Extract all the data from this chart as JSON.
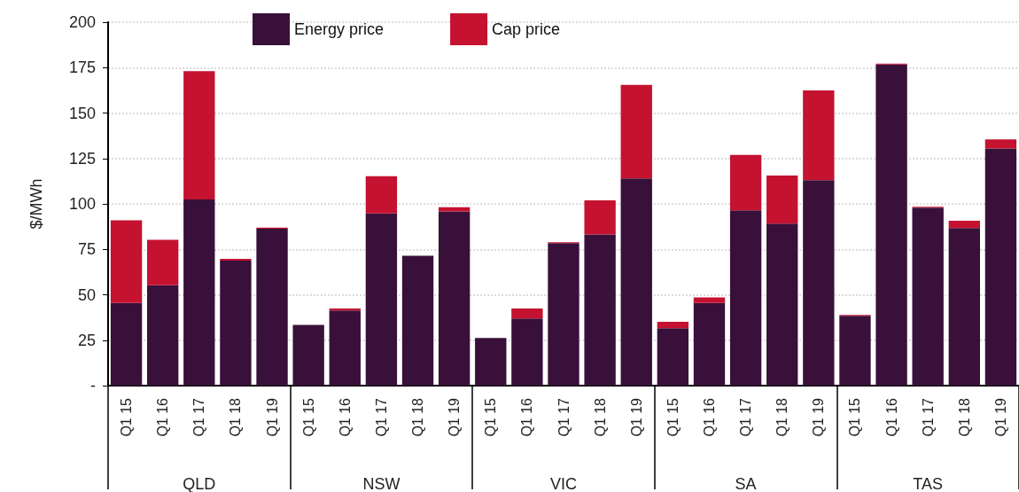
{
  "chart_data": {
    "type": "bar",
    "stacked": true,
    "ylabel": "$/MWh",
    "categories": [
      "Q1 15",
      "Q1 16",
      "Q1 17",
      "Q1 18",
      "Q1 19",
      "Q1 15",
      "Q1 16",
      "Q1 17",
      "Q1 18",
      "Q1 19",
      "Q1 15",
      "Q1 16",
      "Q1 17",
      "Q1 18",
      "Q1 19",
      "Q1 15",
      "Q1 16",
      "Q1 17",
      "Q1 18",
      "Q1 19",
      "Q1 15",
      "Q1 16",
      "Q1 17",
      "Q1 18",
      "Q1 19"
    ],
    "series": [
      {
        "name": "Energy price",
        "color": "#38103a",
        "values": [
          45.5,
          55.3,
          102.5,
          68.8,
          86.4,
          33.4,
          41.4,
          94.8,
          71.5,
          95.9,
          26.2,
          37,
          78.4,
          83.2,
          114,
          31.6,
          45.5,
          96.5,
          89.1,
          113,
          38.4,
          176.7,
          97.9,
          86.7,
          130.5
        ]
      },
      {
        "name": "Cap price",
        "color": "#c41230",
        "values": [
          45.5,
          25,
          70.5,
          1,
          0.5,
          null,
          1,
          20.5,
          null,
          2.3,
          null,
          5.5,
          0.5,
          18.7,
          51.5,
          3.5,
          3,
          30.5,
          26.5,
          49.5,
          0.5,
          0.5,
          0.5,
          4,
          5
        ]
      }
    ],
    "annotations": [
      "QLD",
      "NSW",
      "VIC",
      "SA",
      "TAS"
    ],
    "ylim": [
      0,
      200
    ],
    "yticks": [
      {
        "value": 0,
        "label": "-"
      },
      25,
      50,
      75,
      100,
      125,
      150,
      175,
      200
    ],
    "grid": "y",
    "legend": "top"
  }
}
